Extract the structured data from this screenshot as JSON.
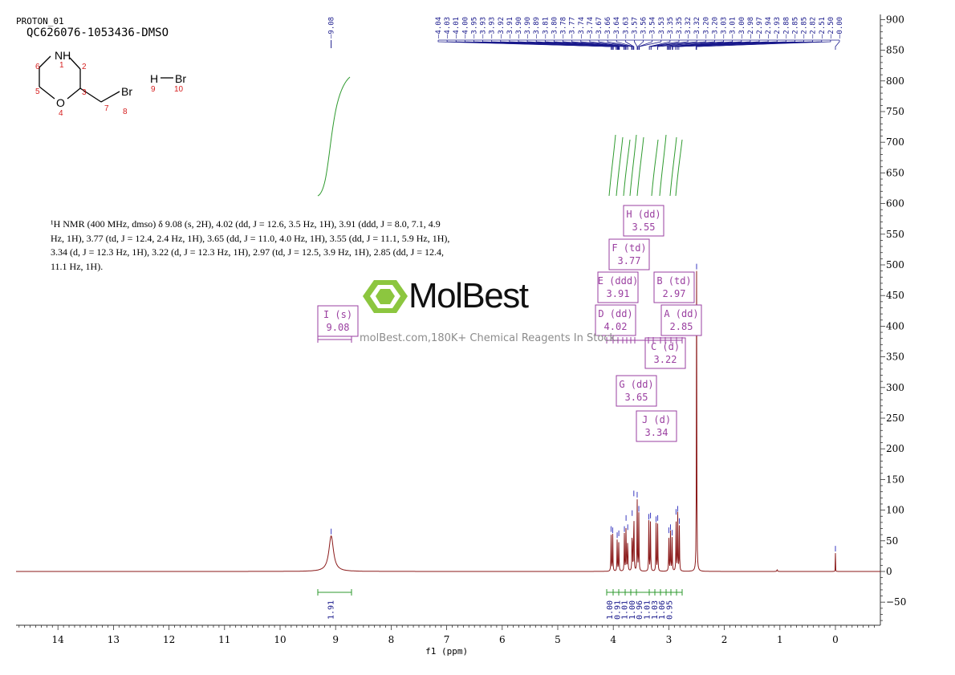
{
  "header": {
    "experiment": "PROTON_01",
    "sample_id": "QC626076-1053436-DMSO"
  },
  "structure": {
    "atoms": {
      "NH": "NH",
      "O": "O",
      "Br_side": "Br",
      "H": "H",
      "Br_salt": "Br"
    },
    "numbers": [
      "1",
      "2",
      "3",
      "4",
      "5",
      "6",
      "7",
      "8",
      "9",
      "10"
    ]
  },
  "nmr_text": {
    "lines": [
      "¹H NMR (400 MHz, dmso) δ 9.08 (s, 2H), 4.02 (dd, J = 12.6, 3.5 Hz, 1H), 3.91 (ddd, J = 8.0, 7.1, 4.9",
      "Hz, 1H), 3.77 (td, J = 12.4, 2.4 Hz, 1H), 3.65 (dd, J = 11.0, 4.0 Hz, 1H), 3.55 (dd, J = 11.1, 5.9 Hz, 1H),",
      "3.34 (d, J = 12.3 Hz, 1H), 3.22 (d, J = 12.3 Hz, 1H), 2.97 (td, J = 12.5, 3.9 Hz, 1H), 2.85 (dd, J = 12.4,",
      "11.1 Hz, 1H)."
    ]
  },
  "watermark": {
    "logo_text": "MolBest",
    "subtitle": "molBest.com,180K+ Chemical Reagents In Stock."
  },
  "colors": {
    "spectrum": "#8b1a1a",
    "integral": "#2e9a2e",
    "peak_label": "#1a1a8c",
    "multiplet_box": "#9a3fa0",
    "axis": "#333333",
    "logo_green": "#8cc63f"
  },
  "chart_data": {
    "type": "line",
    "xlabel": "f1 (ppm)",
    "ylabel": "",
    "xlim": [
      14.75,
      -0.75
    ],
    "x_reversed": true,
    "ylim": [
      -90,
      905
    ],
    "x_ticks": [
      14,
      13,
      12,
      11,
      10,
      9,
      8,
      7,
      6,
      5,
      4,
      3,
      2,
      1,
      0
    ],
    "y_ticks": [
      900,
      850,
      800,
      750,
      700,
      650,
      600,
      550,
      500,
      450,
      400,
      350,
      300,
      250,
      200,
      150,
      100,
      50,
      0,
      -50
    ],
    "grid": false,
    "peaks": [
      {
        "ppm": 9.08,
        "height": 58,
        "width": 0.05
      },
      {
        "ppm": 4.04,
        "height": 62,
        "width": 0.004
      },
      {
        "ppm": 4.01,
        "height": 60,
        "width": 0.004
      },
      {
        "ppm": 3.93,
        "height": 52,
        "width": 0.004
      },
      {
        "ppm": 3.9,
        "height": 55,
        "width": 0.004
      },
      {
        "ppm": 3.8,
        "height": 62,
        "width": 0.004
      },
      {
        "ppm": 3.77,
        "height": 80,
        "width": 0.004
      },
      {
        "ppm": 3.74,
        "height": 65,
        "width": 0.004
      },
      {
        "ppm": 3.66,
        "height": 88,
        "width": 0.004
      },
      {
        "ppm": 3.63,
        "height": 120,
        "width": 0.004
      },
      {
        "ppm": 3.57,
        "height": 118,
        "width": 0.004
      },
      {
        "ppm": 3.54,
        "height": 95,
        "width": 0.004
      },
      {
        "ppm": 3.36,
        "height": 82,
        "width": 0.004
      },
      {
        "ppm": 3.33,
        "height": 84,
        "width": 0.004
      },
      {
        "ppm": 3.23,
        "height": 78,
        "width": 0.004
      },
      {
        "ppm": 3.2,
        "height": 80,
        "width": 0.004
      },
      {
        "ppm": 3.0,
        "height": 60,
        "width": 0.004
      },
      {
        "ppm": 2.97,
        "height": 65,
        "width": 0.004
      },
      {
        "ppm": 2.94,
        "height": 56,
        "width": 0.004
      },
      {
        "ppm": 2.87,
        "height": 90,
        "width": 0.004
      },
      {
        "ppm": 2.84,
        "height": 95,
        "width": 0.004
      },
      {
        "ppm": 2.81,
        "height": 75,
        "width": 0.004
      },
      {
        "ppm": 2.5,
        "height": 490,
        "width": 0.004
      },
      {
        "ppm": 1.05,
        "height": 3,
        "width": 0.006
      },
      {
        "ppm": 0.0,
        "height": 30,
        "width": 0.002
      }
    ],
    "peak_labels_left": [
      "9.08"
    ],
    "peak_labels_right": [
      "4.04",
      "4.03",
      "4.01",
      "4.00",
      "3.95",
      "3.93",
      "3.93",
      "3.92",
      "3.91",
      "3.90",
      "3.90",
      "3.89",
      "3.81",
      "3.80",
      "3.78",
      "3.77",
      "3.74",
      "3.74",
      "3.67",
      "3.66",
      "3.64",
      "3.63",
      "3.57",
      "3.56",
      "3.54",
      "3.53",
      "3.35",
      "3.35",
      "3.32",
      "3.32",
      "3.20",
      "3.20",
      "3.03",
      "3.01",
      "3.00",
      "2.98",
      "2.97",
      "2.94",
      "2.93",
      "2.88",
      "2.85",
      "2.85",
      "2.82",
      "2.51",
      "2.50",
      "0.00"
    ],
    "integrals": [
      {
        "label": "1.91",
        "ppm": 9.08,
        "from": 9.35,
        "to": 8.75
      },
      {
        "label": "1.00",
        "ppm": 4.02,
        "from": 4.09,
        "to": 3.97
      },
      {
        "label": "0.91",
        "ppm": 3.91,
        "from": 3.97,
        "to": 3.86
      },
      {
        "label": "1.01",
        "ppm": 3.77,
        "from": 3.84,
        "to": 3.71
      },
      {
        "label": "1.00",
        "ppm": 3.65,
        "from": 3.7,
        "to": 3.6
      },
      {
        "label": "0.96",
        "ppm": 3.55,
        "from": 3.6,
        "to": 3.5
      },
      {
        "label": "1.01",
        "ppm": 3.34,
        "from": 3.39,
        "to": 3.29
      },
      {
        "label": "1.03",
        "ppm": 3.22,
        "from": 3.27,
        "to": 3.17
      },
      {
        "label": "1.06",
        "ppm": 2.97,
        "from": 3.05,
        "to": 2.9
      },
      {
        "label": "0.95",
        "ppm": 2.85,
        "from": 2.9,
        "to": 2.78
      }
    ],
    "multiplets": [
      {
        "letter": "I",
        "mult": "s",
        "ppm": "9.08",
        "from": 9.35,
        "to": 8.75
      },
      {
        "letter": "H",
        "mult": "dd",
        "ppm": "3.55"
      },
      {
        "letter": "F",
        "mult": "td",
        "ppm": "3.77"
      },
      {
        "letter": "E",
        "mult": "ddd",
        "ppm": "3.91"
      },
      {
        "letter": "B",
        "mult": "td",
        "ppm": "2.97"
      },
      {
        "letter": "D",
        "mult": "dd",
        "ppm": "4.02"
      },
      {
        "letter": "A",
        "mult": "dd",
        "ppm": "2.85"
      },
      {
        "letter": "C",
        "mult": "d",
        "ppm": "3.22"
      },
      {
        "letter": "G",
        "mult": "dd",
        "ppm": "3.65"
      },
      {
        "letter": "J",
        "mult": "d",
        "ppm": "3.34"
      }
    ]
  }
}
